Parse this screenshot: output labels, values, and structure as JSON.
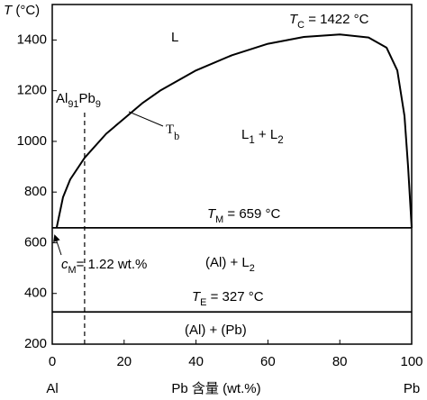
{
  "chart_data": {
    "type": "phase-diagram",
    "y_label": {
      "parts": [
        "T",
        " (°C)"
      ],
      "italic": [
        0
      ]
    },
    "x_label": "Pb 含量 (wt.%)",
    "x_end_labels": [
      "Al",
      "Pb"
    ],
    "xlim": [
      0,
      100
    ],
    "xticks": [
      0,
      20,
      40,
      60,
      80,
      100
    ],
    "ylim": [
      200,
      1540
    ],
    "yticks": [
      200,
      400,
      600,
      800,
      1000,
      1200,
      1400
    ],
    "series": [
      {
        "name": "Tb",
        "x": [
          1.22,
          3,
          5,
          9,
          15,
          20,
          25,
          30,
          40,
          50,
          60,
          70,
          80,
          88,
          93,
          96,
          98,
          99,
          100
        ],
        "values": [
          659,
          780,
          850,
          935,
          1030,
          1090,
          1150,
          1200,
          1280,
          1340,
          1385,
          1412,
          1422,
          1410,
          1370,
          1280,
          1100,
          900,
          659
        ],
        "color": "#000000"
      }
    ],
    "hlines": [
      659,
      327
    ],
    "dashed_x": 9,
    "annotations": [
      {
        "parts": [
          "L"
        ]
      },
      {
        "parts": [
          "T",
          "C",
          " = 1422 °C"
        ],
        "italic": [
          0
        ],
        "sub": [
          1
        ]
      },
      {
        "parts": [
          "Al",
          "91",
          "Pb",
          "9"
        ],
        "sub": [
          1,
          3
        ]
      },
      {
        "parts": [
          "T",
          "b"
        ],
        "serif": true,
        "sub": [
          1
        ]
      },
      {
        "parts": [
          "L",
          "1",
          " + L",
          "2"
        ],
        "sub": [
          1,
          3
        ]
      },
      {
        "parts": [
          "T",
          "M",
          " = 659 °C"
        ],
        "italic": [
          0
        ],
        "sub": [
          1
        ]
      },
      {
        "parts": [
          "c",
          "M",
          "= 1.22 wt.%"
        ],
        "italic": [
          0
        ],
        "sub": [
          1
        ]
      },
      {
        "parts": [
          "(Al) + L",
          "2"
        ],
        "sub": [
          1
        ]
      },
      {
        "parts": [
          "T",
          "E",
          " = 327 °C"
        ],
        "italic": [
          0
        ],
        "sub": [
          1
        ]
      },
      {
        "parts": [
          "(Al) + (Pb)"
        ]
      }
    ]
  }
}
